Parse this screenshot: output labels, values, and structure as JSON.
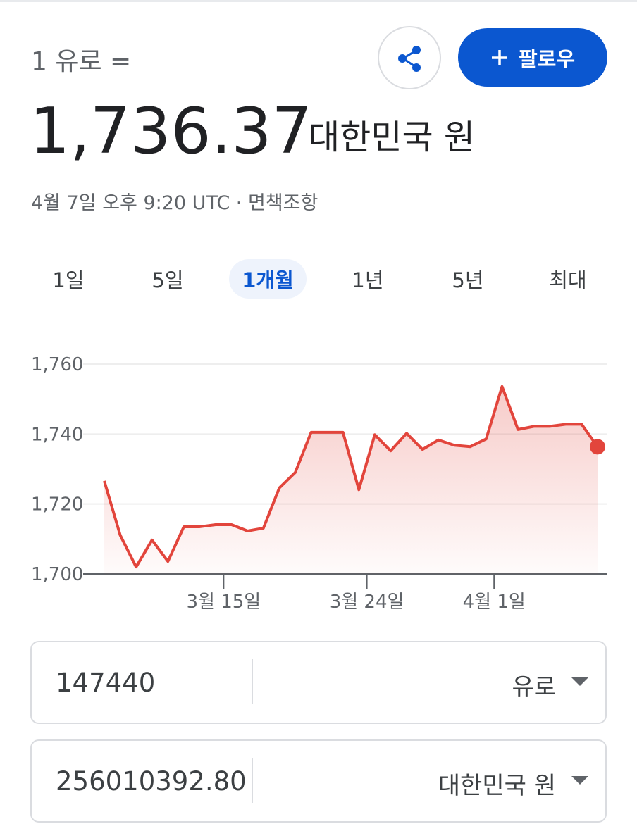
{
  "header": {
    "label": "1 유로 =",
    "value": "1,736.37",
    "unit": "대한민국 원",
    "timestamp": "4월 7일 오후 9:20 UTC",
    "separator": "·",
    "disclaimer": "면책조항",
    "follow": "팔로우"
  },
  "tabs": {
    "items": [
      "1일",
      "5일",
      "1개월",
      "1년",
      "5년",
      "최대"
    ],
    "selected": 2
  },
  "chart_data": {
    "type": "line",
    "color": "#e2453c",
    "x": [
      7.5,
      8.5,
      9.5,
      10.5,
      11.5,
      12.5,
      13.5,
      14.5,
      15.5,
      16.5,
      17.5,
      18.5,
      19.5,
      20.5,
      21.5,
      22.5,
      23.5,
      24.5,
      25.5,
      26.5,
      27.5,
      28.5,
      29.5,
      30.5,
      31.5,
      32.5,
      33.5,
      34.5,
      35.5,
      36.5,
      37.5,
      38.5
    ],
    "values": [
      1726.6,
      1711.1,
      1702,
      1709.7,
      1703.6,
      1713.5,
      1713.5,
      1714.1,
      1714.1,
      1712.3,
      1713.1,
      1724.6,
      1729,
      1740.5,
      1740.5,
      1740.5,
      1724.1,
      1739.8,
      1735.2,
      1740.2,
      1735.6,
      1738.3,
      1736.8,
      1736.4,
      1738.6,
      1753.6,
      1741.3,
      1742.2,
      1742.2,
      1742.8,
      1742.8,
      1736.37
    ],
    "xlim": [
      7.5,
      38.5
    ],
    "xticks": [
      {
        "value": 15,
        "label": "3월 15일"
      },
      {
        "value": 24,
        "label": "3월 24일"
      },
      {
        "value": 32,
        "label": "4월 1일"
      }
    ],
    "ylim": [
      1700,
      1760
    ],
    "yticks": [
      {
        "value": 1700,
        "label": "1,700"
      },
      {
        "value": 1720,
        "label": "1,720"
      },
      {
        "value": 1740,
        "label": "1,740"
      },
      {
        "value": 1760,
        "label": "1,760"
      }
    ],
    "grid": true
  },
  "converter": {
    "from": {
      "amount": "147440",
      "currency": "유로"
    },
    "to": {
      "amount": "256010392.80",
      "currency": "대한민국 원"
    }
  }
}
